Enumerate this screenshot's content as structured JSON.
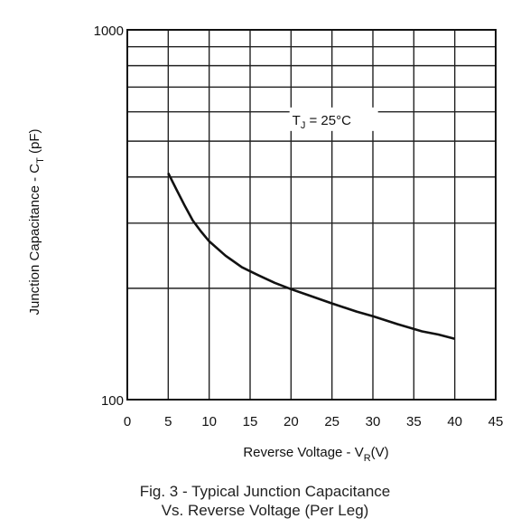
{
  "chart_data": {
    "type": "line",
    "xlabel": {
      "text": "Reverse Voltage - V",
      "sub": "R",
      "tail": "(V)"
    },
    "ylabel": {
      "text": "Junction Capacitance - C",
      "sub": "T",
      "tail": " (pF)"
    },
    "xlim": [
      0,
      45
    ],
    "ylim": [
      100,
      1000
    ],
    "yscale": "log",
    "grid": true,
    "x_ticks": [
      "0",
      "5",
      "10",
      "15",
      "20",
      "25",
      "30",
      "35",
      "40",
      "45"
    ],
    "y_ticks": [
      "100",
      "1000"
    ],
    "annotation": {
      "text": "T",
      "sub": "J",
      "tail": " = 25°C",
      "x": 25,
      "y": 570
    },
    "series": [
      {
        "x": [
          5,
          6,
          7,
          8,
          9,
          10,
          12,
          14,
          16,
          18,
          20,
          22,
          25,
          28,
          30,
          33,
          36,
          38,
          40
        ],
        "y": [
          410,
          370,
          335,
          305,
          285,
          268,
          245,
          228,
          217,
          207,
          199,
          192,
          182,
          173,
          168,
          160,
          153,
          150,
          146
        ],
        "color": "#111111"
      }
    ]
  },
  "caption": {
    "line1": "Fig. 3 - Typical Junction Capacitance",
    "line2": "Vs.  Reverse  Voltage  (Per Leg)"
  }
}
